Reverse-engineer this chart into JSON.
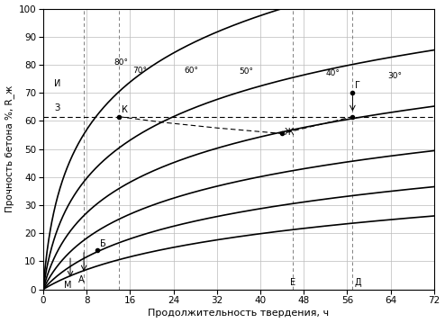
{
  "xlabel": "Продолжительность твердения, ч",
  "ylabel": "Прочность бетона %, R_ж",
  "xlim": [
    0,
    72
  ],
  "ylim": [
    0,
    100
  ],
  "xticks": [
    0,
    8,
    16,
    24,
    32,
    40,
    48,
    56,
    64,
    72
  ],
  "yticks": [
    0,
    10,
    20,
    30,
    40,
    50,
    60,
    70,
    80,
    90,
    100
  ],
  "curve_label_positions": [
    [
      13.0,
      79.5,
      "80°"
    ],
    [
      16.5,
      76.5,
      "70°"
    ],
    [
      26.0,
      76.5,
      "60°"
    ],
    [
      36.0,
      76.0,
      "50°"
    ],
    [
      52.0,
      75.5,
      "40°"
    ],
    [
      63.5,
      74.5,
      "30°"
    ]
  ],
  "dashed_h_y": 61.5,
  "vlines_x": [
    7.5,
    14,
    46,
    57
  ],
  "background_color": "#ffffff",
  "grid_color": "#bbbbbb",
  "curve_color": "#000000"
}
